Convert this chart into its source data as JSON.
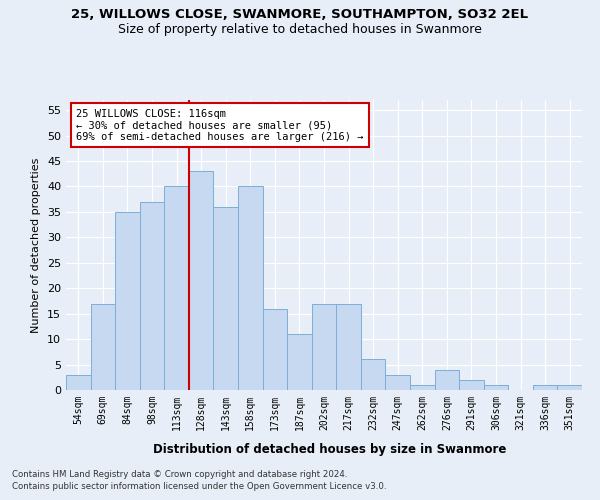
{
  "title1": "25, WILLOWS CLOSE, SWANMORE, SOUTHAMPTON, SO32 2EL",
  "title2": "Size of property relative to detached houses in Swanmore",
  "xlabel": "Distribution of detached houses by size in Swanmore",
  "ylabel": "Number of detached properties",
  "footnote1": "Contains HM Land Registry data © Crown copyright and database right 2024.",
  "footnote2": "Contains public sector information licensed under the Open Government Licence v3.0.",
  "bar_labels": [
    "54sqm",
    "69sqm",
    "84sqm",
    "98sqm",
    "113sqm",
    "128sqm",
    "143sqm",
    "158sqm",
    "173sqm",
    "187sqm",
    "202sqm",
    "217sqm",
    "232sqm",
    "247sqm",
    "262sqm",
    "276sqm",
    "291sqm",
    "306sqm",
    "321sqm",
    "336sqm",
    "351sqm"
  ],
  "bar_values": [
    3,
    17,
    35,
    37,
    40,
    43,
    36,
    40,
    16,
    11,
    17,
    17,
    6,
    3,
    1,
    4,
    2,
    1,
    0,
    1,
    1
  ],
  "bar_color": "#c6d9f0",
  "bar_edge_color": "#7bafd4",
  "ylim": [
    0,
    57
  ],
  "yticks": [
    0,
    5,
    10,
    15,
    20,
    25,
    30,
    35,
    40,
    45,
    50,
    55
  ],
  "property_line_x": 4.5,
  "annotation_line1": "25 WILLOWS CLOSE: 116sqm",
  "annotation_line2": "← 30% of detached houses are smaller (95)",
  "annotation_line3": "69% of semi-detached houses are larger (216) →",
  "red_line_color": "#cc0000",
  "background_color": "#e8eef7",
  "grid_color": "#ffffff"
}
